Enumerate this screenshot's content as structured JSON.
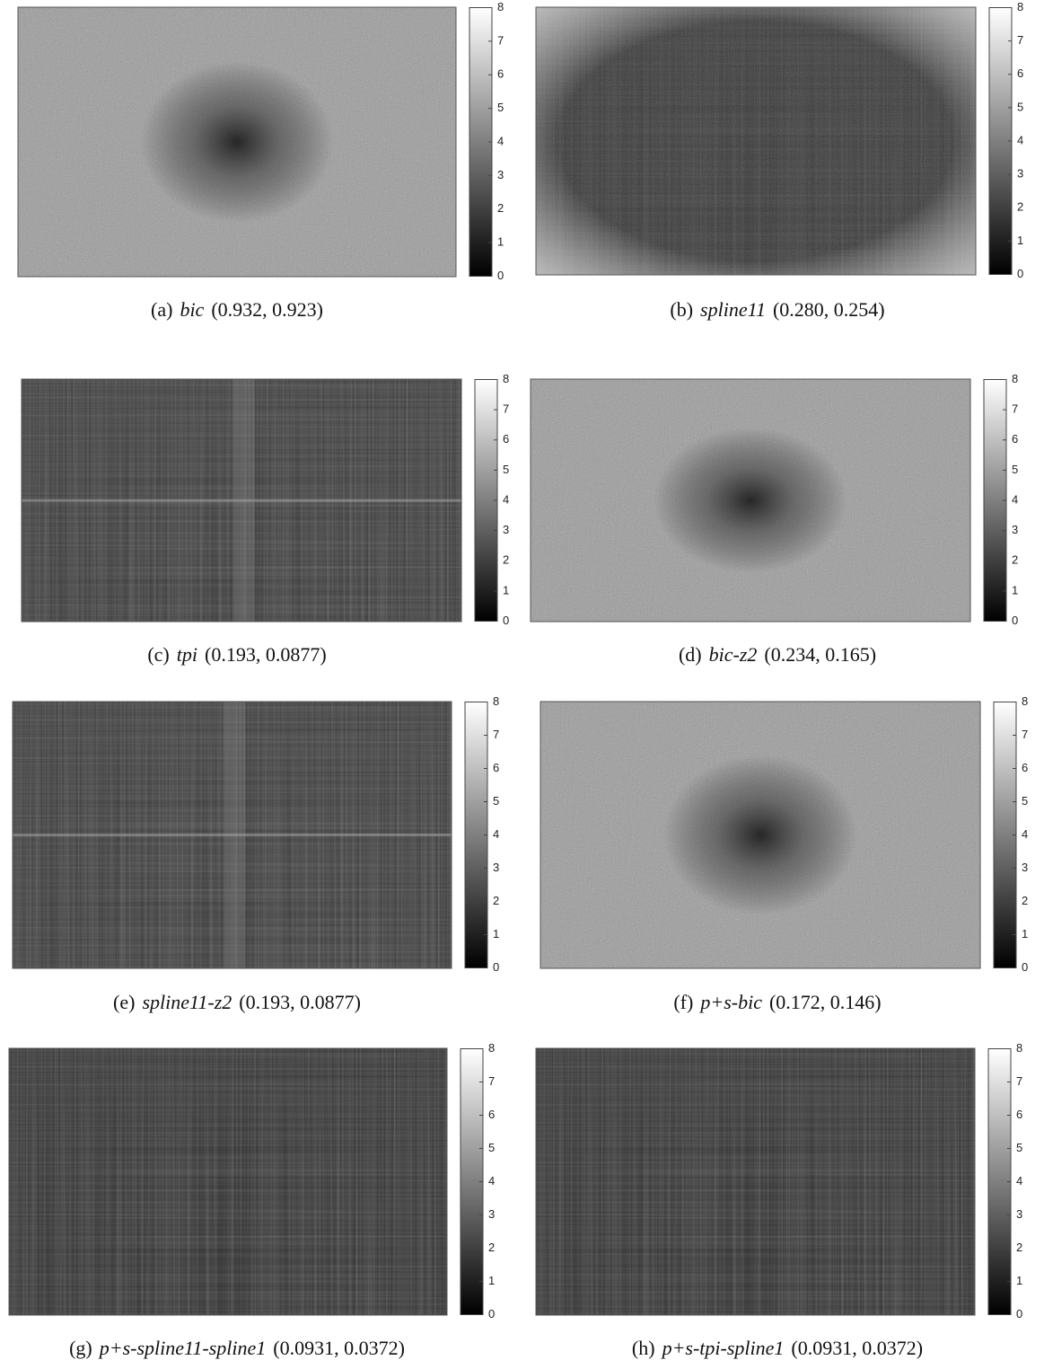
{
  "colorbar": {
    "lim": [
      0,
      8
    ],
    "ticks": [
      0,
      1,
      2,
      3,
      4,
      5,
      6,
      7,
      8
    ]
  },
  "panels": [
    {
      "label": "(a)",
      "method": "bic",
      "scores": "(0.932, 0.923)"
    },
    {
      "label": "(b)",
      "method": "spline11",
      "scores": "(0.280, 0.254)"
    },
    {
      "label": "(c)",
      "method": "tpi",
      "scores": "(0.193, 0.0877)"
    },
    {
      "label": "(d)",
      "method": "bic-z2",
      "scores": "(0.234, 0.165)"
    },
    {
      "label": "(e)",
      "method": "spline11-z2",
      "scores": "(0.193, 0.0877)"
    },
    {
      "label": "(f)",
      "method": "p+s-bic",
      "scores": "(0.172, 0.146)"
    },
    {
      "label": "(g)",
      "method": "p+s-spline11-spline1",
      "scores": "(0.0931, 0.0372)"
    },
    {
      "label": "(h)",
      "method": "p+s-tpi-spline1",
      "scores": "(0.0931, 0.0372)"
    }
  ]
}
